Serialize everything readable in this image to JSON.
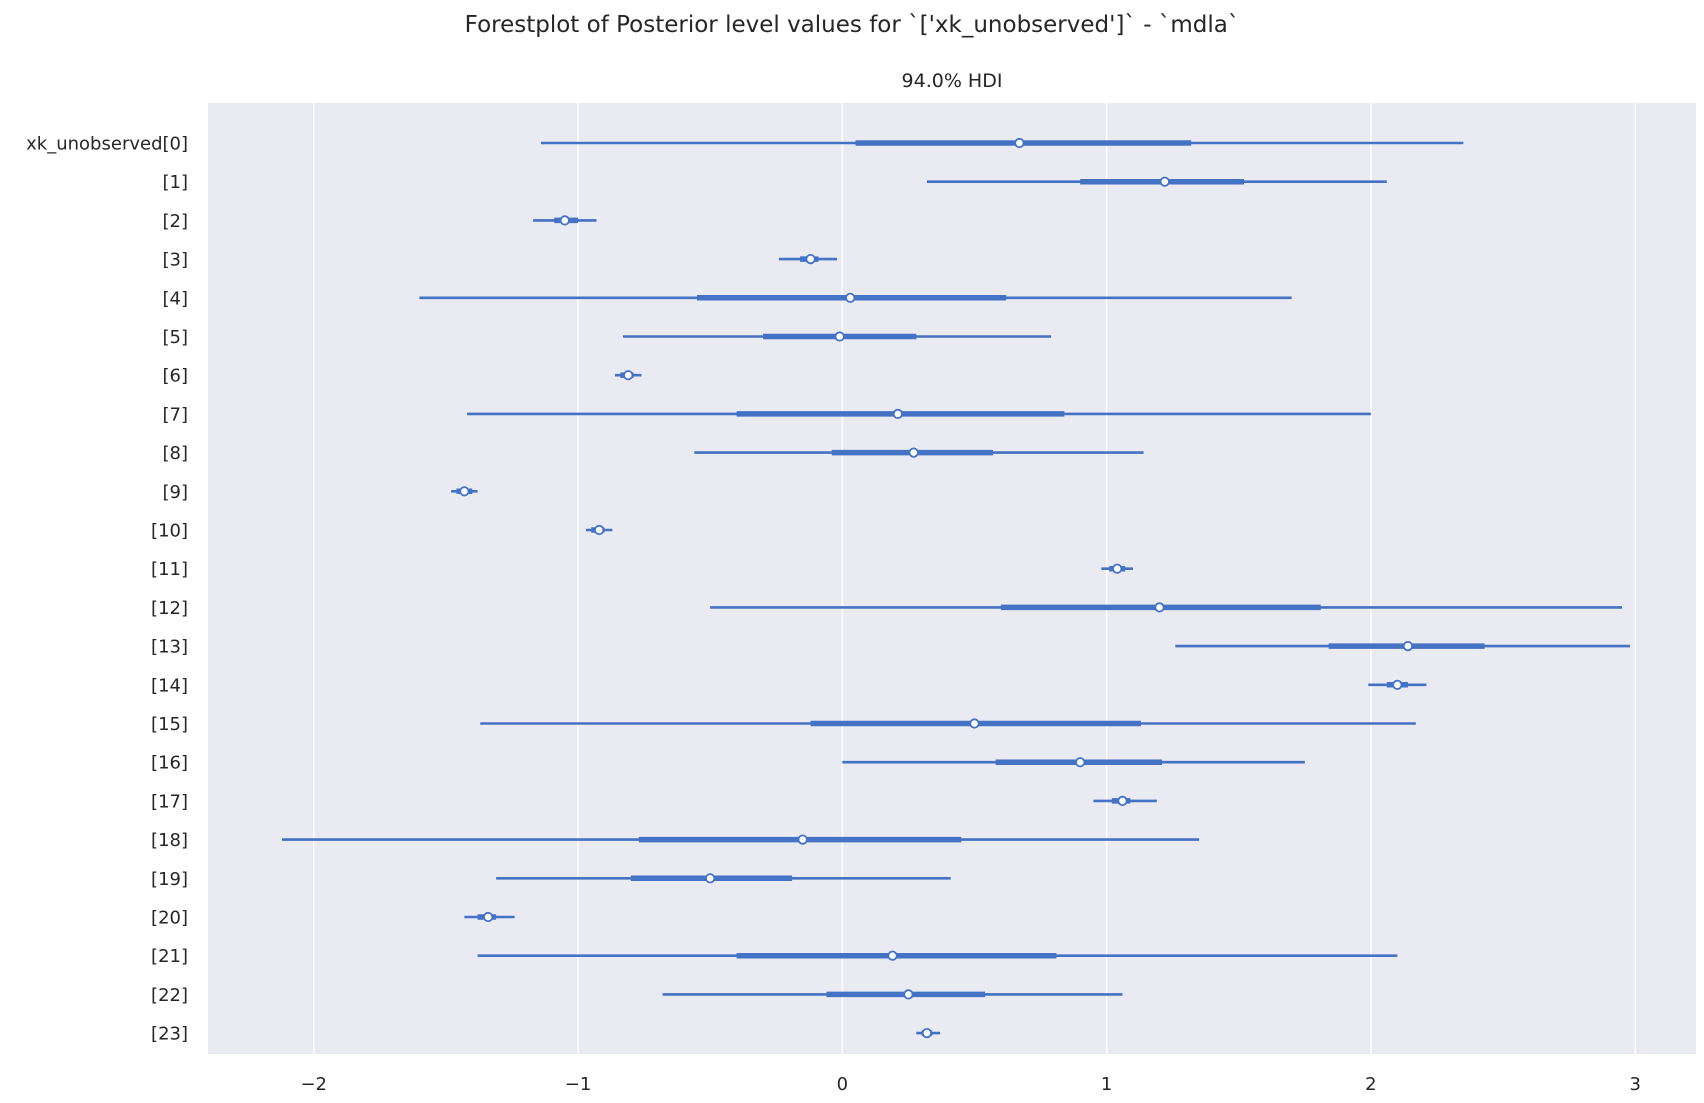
{
  "chart_data": {
    "type": "forest",
    "title": "Forestplot of Posterior level values for `['xk_unobserved']` - `mdla`",
    "subtitle": "94.0% HDI",
    "xlim": [
      -2.4,
      3.23
    ],
    "xticks": [
      -2,
      -1,
      0,
      1,
      2,
      3
    ],
    "xtick_labels": [
      "−2",
      "−1",
      "0",
      "1",
      "2",
      "3"
    ],
    "grid": true,
    "color": "#4472c4",
    "background": "#eaeaf2",
    "variables": [
      {
        "label": "xk_unobserved[0]",
        "hdi": [
          -1.14,
          2.35
        ],
        "iqr": [
          0.05,
          1.32
        ],
        "median": 0.67
      },
      {
        "label": "[1]",
        "hdi": [
          0.32,
          2.06
        ],
        "iqr": [
          0.9,
          1.52
        ],
        "median": 1.22
      },
      {
        "label": "[2]",
        "hdi": [
          -1.17,
          -0.93
        ],
        "iqr": [
          -1.09,
          -1.0
        ],
        "median": -1.05
      },
      {
        "label": "[3]",
        "hdi": [
          -0.24,
          -0.02
        ],
        "iqr": [
          -0.16,
          -0.09
        ],
        "median": -0.12
      },
      {
        "label": "[4]",
        "hdi": [
          -1.6,
          1.7
        ],
        "iqr": [
          -0.55,
          0.62
        ],
        "median": 0.03
      },
      {
        "label": "[5]",
        "hdi": [
          -0.83,
          0.79
        ],
        "iqr": [
          -0.3,
          0.28
        ],
        "median": -0.01
      },
      {
        "label": "[6]",
        "hdi": [
          -0.86,
          -0.76
        ],
        "iqr": [
          -0.84,
          -0.79
        ],
        "median": -0.81
      },
      {
        "label": "[7]",
        "hdi": [
          -1.42,
          2.0
        ],
        "iqr": [
          -0.4,
          0.84
        ],
        "median": 0.21
      },
      {
        "label": "[8]",
        "hdi": [
          -0.56,
          1.14
        ],
        "iqr": [
          -0.04,
          0.57
        ],
        "median": 0.27
      },
      {
        "label": "[9]",
        "hdi": [
          -1.48,
          -1.38
        ],
        "iqr": [
          -1.46,
          -1.4
        ],
        "median": -1.43
      },
      {
        "label": "[10]",
        "hdi": [
          -0.97,
          -0.87
        ],
        "iqr": [
          -0.95,
          -0.9
        ],
        "median": -0.92
      },
      {
        "label": "[11]",
        "hdi": [
          0.98,
          1.1
        ],
        "iqr": [
          1.01,
          1.07
        ],
        "median": 1.04
      },
      {
        "label": "[12]",
        "hdi": [
          -0.5,
          2.95
        ],
        "iqr": [
          0.6,
          1.81
        ],
        "median": 1.2
      },
      {
        "label": "[13]",
        "hdi": [
          1.26,
          2.98
        ],
        "iqr": [
          1.84,
          2.43
        ],
        "median": 2.14
      },
      {
        "label": "[14]",
        "hdi": [
          1.99,
          2.21
        ],
        "iqr": [
          2.06,
          2.14
        ],
        "median": 2.1
      },
      {
        "label": "[15]",
        "hdi": [
          -1.37,
          2.17
        ],
        "iqr": [
          -0.12,
          1.13
        ],
        "median": 0.5
      },
      {
        "label": "[16]",
        "hdi": [
          0.0,
          1.75
        ],
        "iqr": [
          0.58,
          1.21
        ],
        "median": 0.9
      },
      {
        "label": "[17]",
        "hdi": [
          0.95,
          1.19
        ],
        "iqr": [
          1.02,
          1.09
        ],
        "median": 1.06
      },
      {
        "label": "[18]",
        "hdi": [
          -2.12,
          1.35
        ],
        "iqr": [
          -0.77,
          0.45
        ],
        "median": -0.15
      },
      {
        "label": "[19]",
        "hdi": [
          -1.31,
          0.41
        ],
        "iqr": [
          -0.8,
          -0.19
        ],
        "median": -0.5
      },
      {
        "label": "[20]",
        "hdi": [
          -1.43,
          -1.24
        ],
        "iqr": [
          -1.38,
          -1.31
        ],
        "median": -1.34
      },
      {
        "label": "[21]",
        "hdi": [
          -1.38,
          2.1
        ],
        "iqr": [
          -0.4,
          0.81
        ],
        "median": 0.19
      },
      {
        "label": "[22]",
        "hdi": [
          -0.68,
          1.06
        ],
        "iqr": [
          -0.06,
          0.54
        ],
        "median": 0.25
      },
      {
        "label": "[23]",
        "hdi": [
          0.28,
          0.37
        ],
        "iqr": [
          0.3,
          0.34
        ],
        "median": 0.32
      }
    ]
  }
}
